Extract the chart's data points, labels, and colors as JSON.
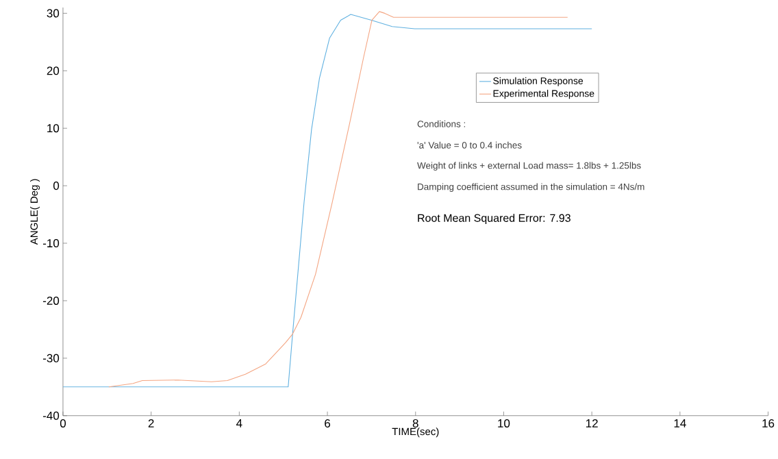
{
  "chart_data": {
    "type": "line",
    "xlabel": "TIME(sec)",
    "ylabel": "ANGLE( Deg )",
    "xlim": [
      0,
      16
    ],
    "ylim": [
      -40,
      31
    ],
    "xticks": [
      0,
      2,
      4,
      6,
      8,
      10,
      12,
      14,
      16
    ],
    "yticks": [
      -40,
      -30,
      -20,
      -10,
      0,
      10,
      20,
      30
    ],
    "legend": "top right",
    "grid": false,
    "marker": "none",
    "line_style": "solid",
    "series": [
      {
        "name": "Simulation Response",
        "color": "#5fb0e0",
        "x": [
          0,
          5.11,
          5.21,
          5.47,
          5.64,
          5.82,
          6.05,
          6.3,
          6.53,
          7.0,
          7.47,
          7.98,
          12.0
        ],
        "values": [
          -35,
          -35,
          -25.8,
          -2.9,
          9.8,
          18.7,
          25.7,
          28.8,
          29.8,
          28.8,
          27.7,
          27.3,
          27.3
        ]
      },
      {
        "name": "Experimental Response",
        "color": "#f4a582",
        "x": [
          1.04,
          1.59,
          1.8,
          2.61,
          3.37,
          3.73,
          4.14,
          4.6,
          5.05,
          5.21,
          5.4,
          5.73,
          6.11,
          6.5,
          6.82,
          7.01,
          7.18,
          7.3,
          7.5,
          11.45
        ],
        "values": [
          -35,
          -34.4,
          -33.9,
          -33.8,
          -34.1,
          -33.9,
          -32.8,
          -31.0,
          -27.3,
          -25.8,
          -22.9,
          -15.4,
          -2.9,
          10.7,
          22.3,
          28.8,
          30.3,
          30.0,
          29.3,
          29.3
        ]
      }
    ],
    "annotations": [
      "Conditions :",
      "'a' Value = 0 to 0.4 inches",
      "Weight of links + external Load mass= 1.8lbs + 1.25lbs",
      "Damping coefficient assumed in the simulation = 4Ns/m",
      "Root Mean Squared Error: 7.93"
    ]
  }
}
